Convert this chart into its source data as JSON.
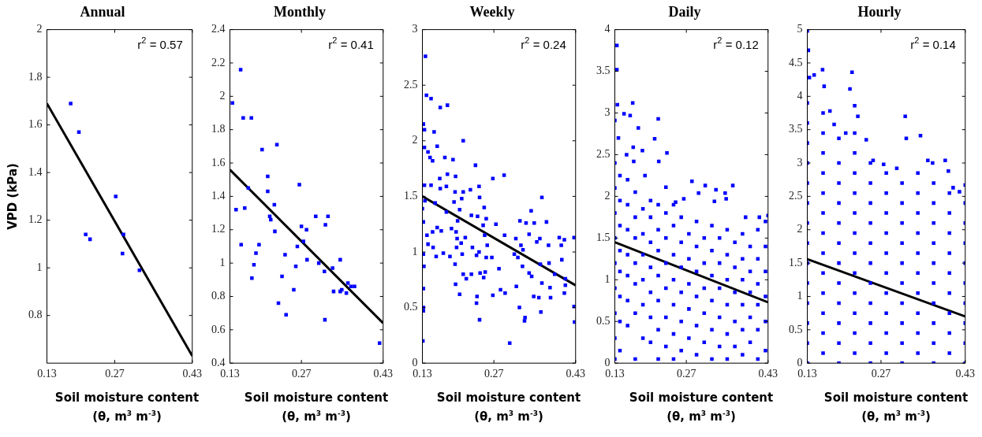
{
  "chart_data": [
    {
      "type": "scatter",
      "title": "Annual",
      "ylabel": "VPD (kPa)",
      "xlabel": "Soil moisture content (θ, m$^{3}$ m$^{-3}$)",
      "annotations": [
        "r$^{2}$ = 0.57"
      ],
      "xlim": [
        0.13,
        0.43
      ],
      "xticks": [
        0.13,
        0.27,
        0.43
      ],
      "ylim": [
        0.6,
        2
      ],
      "yticks": [
        0.8,
        1,
        1.2,
        1.4,
        1.6,
        1.8,
        2
      ],
      "series": [
        {
          "type": "scatter",
          "color": "#0000ff",
          "marker": "square",
          "x": [
            0.179,
            0.196,
            0.21,
            0.219,
            0.272,
            0.288,
            0.286,
            0.321
          ],
          "values": [
            1.69,
            1.57,
            1.14,
            1.12,
            1.3,
            1.14,
            1.06,
            0.99
          ]
        },
        {
          "type": "line",
          "color": "#000000",
          "marker": "none",
          "x": [
            0.13,
            0.43
          ],
          "values": [
            1.69,
            0.63
          ]
        }
      ]
    },
    {
      "type": "scatter",
      "title": "Monthly",
      "xlabel": "Soil moisture content (θ, m$^{3}$ m$^{-3}$)",
      "annotations": [
        "r$^{2}$ = 0.41"
      ],
      "xlim": [
        0.13,
        0.43
      ],
      "xticks": [
        0.13,
        0.27,
        0.43
      ],
      "ylim": [
        0.4,
        2.4
      ],
      "yticks": [
        0.4,
        0.6,
        0.8,
        1,
        1.2,
        1.4,
        1.6,
        1.8,
        2,
        2.2,
        2.4
      ],
      "series": [
        {
          "type": "scatter",
          "color": "#0000ff",
          "marker": "square",
          "x": [
            0.135,
            0.151,
            0.156,
            0.172,
            0.142,
            0.159,
            0.152,
            0.166,
            0.193,
            0.222,
            0.204,
            0.204,
            0.217,
            0.208,
            0.21,
            0.218,
            0.187,
            0.181,
            0.177,
            0.173,
            0.232,
            0.238,
            0.225,
            0.24,
            0.255,
            0.259,
            0.262,
            0.266,
            0.27,
            0.274,
            0.28,
            0.281,
            0.298,
            0.304,
            0.315,
            0.317,
            0.322,
            0.331,
            0.333,
            0.316,
            0.346,
            0.346,
            0.349,
            0.358,
            0.361,
            0.367,
            0.374,
            0.423
          ],
          "values": [
            1.96,
            2.16,
            1.87,
            1.87,
            1.32,
            1.33,
            1.11,
            1.45,
            1.68,
            1.71,
            1.52,
            1.43,
            1.35,
            1.28,
            1.26,
            1.19,
            1.11,
            1.06,
            0.99,
            0.91,
            0.92,
            1.05,
            0.76,
            0.69,
            0.84,
            0.98,
            1.1,
            1.47,
            1.22,
            1.13,
            1.2,
            1.02,
            1.28,
            1,
            0.95,
            1.23,
            1.28,
            0.97,
            0.83,
            0.66,
            1.02,
            0.83,
            0.84,
            0.82,
            0.88,
            0.86,
            0.86,
            0.52
          ]
        },
        {
          "type": "line",
          "color": "#000000",
          "marker": "none",
          "x": [
            0.13,
            0.43
          ],
          "values": [
            1.56,
            0.64
          ]
        }
      ]
    },
    {
      "type": "scatter",
      "title": "Weekly",
      "xlabel": "Soil moisture content (θ, m$^{3}$ m$^{-3}$)",
      "annotations": [
        "r$^{2}$ = 0.24"
      ],
      "xlim": [
        0.13,
        0.43
      ],
      "xticks": [
        0.13,
        0.27,
        0.43
      ],
      "ylim": [
        0,
        3
      ],
      "yticks": [
        0,
        0.5,
        1,
        1.5,
        2,
        2.5,
        3
      ],
      "series": [
        {
          "type": "scatter",
          "color": "#0000ff",
          "marker": "square",
          "x": [
            0.136,
            0.138,
            0.147,
            0.165,
            0.179,
            0.132,
            0.134,
            0.153,
            0.21,
            0.134,
            0.159,
            0.141,
            0.145,
            0.15,
            0.174,
            0.19,
            0.234,
            0.179,
            0.164,
            0.195,
            0.268,
            0.29,
            0.134,
            0.147,
            0.177,
            0.241,
            0.224,
            0.165,
            0.194,
            0.21,
            0.135,
            0.155,
            0.192,
            0.207,
            0.242,
            0.364,
            0.13,
            0.177,
            0.203,
            0.251,
            0.343,
            0.132,
            0.199,
            0.226,
            0.238,
            0.255,
            0.321,
            0.333,
            0.373,
            0.349,
            0.159,
            0.187,
            0.249,
            0.274,
            0.139,
            0.15,
            0.167,
            0.196,
            0.214,
            0.252,
            0.291,
            0.313,
            0.339,
            0.36,
            0.398,
            0.408,
            0.427,
            0.141,
            0.198,
            0.206,
            0.257,
            0.323,
            0.354,
            0.377,
            0.402,
            0.132,
            0.151,
            0.157,
            0.171,
            0.197,
            0.184,
            0.208,
            0.228,
            0.236,
            0.241,
            0.255,
            0.266,
            0.31,
            0.317,
            0.327,
            0.403,
            0.133,
            0.194,
            0.28,
            0.326,
            0.361,
            0.378,
            0.21,
            0.226,
            0.243,
            0.253,
            0.339,
            0.344,
            0.389,
            0.41,
            0.216,
            0.25,
            0.195,
            0.314,
            0.364,
            0.38,
            0.41,
            0.132,
            0.203,
            0.283,
            0.292,
            0.268,
            0.237,
            0.348,
            0.358,
            0.381,
            0.408,
            0.236,
            0.32,
            0.362,
            0.427,
            0.132,
            0.132,
            0.242,
            0.331,
            0.33,
            0.428,
            0.131,
            0.301
          ],
          "values": [
            2.76,
            2.41,
            2.38,
            2.3,
            2.32,
            2.15,
            2.1,
            2.08,
            2,
            1.94,
            1.95,
            1.9,
            1.85,
            1.82,
            1.85,
            1.83,
            1.78,
            1.7,
            1.66,
            1.68,
            1.66,
            1.69,
            1.6,
            1.6,
            1.59,
            1.59,
            1.56,
            1.57,
            1.54,
            1.54,
            1.46,
            1.44,
            1.45,
            1.48,
            1.49,
            1.49,
            1.39,
            1.36,
            1.38,
            1.4,
            1.37,
            1.27,
            1.28,
            1.33,
            1.32,
            1.3,
            1.28,
            1.26,
            1.27,
            1.26,
            1.22,
            1.21,
            1.24,
            1.25,
            1.15,
            1.18,
            1.19,
            1.18,
            1.13,
            1.15,
            1.15,
            1.12,
            1.16,
            1.12,
            1.13,
            1.11,
            1.13,
            1.07,
            1.12,
            1.08,
            1.06,
            1.06,
            1.09,
            1.06,
            1.06,
            0.98,
            1.04,
            0.96,
            0.99,
            1.04,
            0.96,
            0.98,
            1.04,
            0.97,
            1,
            0.95,
            0.95,
            0.98,
            0.95,
            1.02,
            0.93,
            0.87,
            0.89,
            0.85,
            0.87,
            0.89,
            0.9,
            0.8,
            0.8,
            0.81,
            0.82,
            0.81,
            0.78,
            0.8,
            0.76,
            0.76,
            0.77,
            0.71,
            0.69,
            0.72,
            0.68,
            0.7,
            0.67,
            0.62,
            0.66,
            0.63,
            0.61,
            0.6,
            0.6,
            0.59,
            0.59,
            0.63,
            0.54,
            0.5,
            0.46,
            0.51,
            0.5,
            0.47,
            0.39,
            0.41,
            0.38,
            0.37,
            0.2,
            0.18
          ]
        },
        {
          "type": "line",
          "color": "#000000",
          "marker": "none",
          "x": [
            0.13,
            0.43
          ],
          "values": [
            1.5,
            0.7
          ]
        }
      ]
    },
    {
      "type": "scatter",
      "title": "Daily",
      "xlabel": "Soil moisture content (θ, m$^{3}$ m$^{-3}$)",
      "annotations": [
        "r$^{2}$ = 0.12"
      ],
      "xlim": [
        0.13,
        0.43
      ],
      "xticks": [
        0.13,
        0.27,
        0.43
      ],
      "ylim": [
        0,
        4
      ],
      "yticks": [
        0,
        0.5,
        1,
        1.5,
        2,
        2.5,
        3,
        3.5,
        4
      ],
      "series": [
        {
          "type": "scatter",
          "color": "#0000ff",
          "marker": "square",
          "x": [
            0.134,
            0.134,
            0.135,
            0.165,
            0.215,
            0.148,
            0.13,
            0.16,
            0.176,
            0.208,
            0.137,
            0.166,
            0.232,
            0.184,
            0.216,
            0.167,
            0.153,
            0.189,
            0.281,
            0.23,
            0.307,
            0.361,
            0.328,
            0.294,
            0.346,
            0.265,
            0.325,
            0.348,
            0.249,
            0.43,
            0.386,
            0.413,
            0.13,
            0.13,
            0.13,
            0.13,
            0.13,
            0.13,
            0.13,
            0.13,
            0.13,
            0.14,
            0.14,
            0.14,
            0.14,
            0.14,
            0.14,
            0.14,
            0.14,
            0.155,
            0.155,
            0.155,
            0.155,
            0.155,
            0.155,
            0.155,
            0.17,
            0.17,
            0.17,
            0.17,
            0.17,
            0.17,
            0.17,
            0.185,
            0.185,
            0.185,
            0.185,
            0.185,
            0.185,
            0.2,
            0.2,
            0.2,
            0.2,
            0.2,
            0.2,
            0.2,
            0.215,
            0.215,
            0.215,
            0.215,
            0.215,
            0.215,
            0.215,
            0.23,
            0.23,
            0.23,
            0.23,
            0.23,
            0.23,
            0.245,
            0.245,
            0.245,
            0.245,
            0.245,
            0.245,
            0.245,
            0.26,
            0.26,
            0.26,
            0.26,
            0.26,
            0.26,
            0.275,
            0.275,
            0.275,
            0.275,
            0.275,
            0.29,
            0.29,
            0.29,
            0.29,
            0.29,
            0.29,
            0.305,
            0.305,
            0.305,
            0.305,
            0.305,
            0.32,
            0.32,
            0.32,
            0.32,
            0.32,
            0.32,
            0.335,
            0.335,
            0.335,
            0.335,
            0.335,
            0.35,
            0.35,
            0.35,
            0.35,
            0.35,
            0.35,
            0.365,
            0.365,
            0.365,
            0.365,
            0.365,
            0.38,
            0.38,
            0.38,
            0.38,
            0.38,
            0.38,
            0.395,
            0.395,
            0.395,
            0.395,
            0.395,
            0.41,
            0.41,
            0.41,
            0.41,
            0.41,
            0.41,
            0.425,
            0.425,
            0.425,
            0.425,
            0.425,
            0.425
          ],
          "values": [
            3.81,
            3.52,
            3.1,
            3.12,
            2.93,
            2.99,
            2.91,
            2.97,
            2.82,
            2.69,
            2.7,
            2.59,
            2.52,
            2.55,
            2.42,
            2.42,
            2.5,
            2.25,
            2.18,
            2.11,
            2.13,
            2.13,
            2.08,
            2.04,
            2.04,
            1.97,
            1.94,
            1.97,
            1.93,
            1.77,
            1.75,
            1.75,
            0.05,
            0.3,
            0.6,
            0.9,
            1.2,
            1.5,
            1.8,
            2.1,
            2.4,
            0.15,
            0.5,
            0.8,
            1.1,
            1.35,
            1.65,
            1.95,
            2.25,
            0.45,
            0.75,
            1.05,
            1.3,
            1.6,
            1.9,
            2.2,
            0.05,
            0.6,
            0.95,
            1.2,
            1.5,
            1.75,
            2.05,
            0.3,
            0.7,
            1,
            1.3,
            1.55,
            1.85,
            0.25,
            0.55,
            0.85,
            1.15,
            1.45,
            1.75,
            1.95,
            0.05,
            0.4,
            0.75,
            1.05,
            1.35,
            1.6,
            1.9,
            0.2,
            0.55,
            0.9,
            1.2,
            1.5,
            1.8,
            0.05,
            0.35,
            0.7,
            1,
            1.3,
            1.65,
            1.9,
            0.15,
            0.5,
            0.85,
            1.15,
            1.45,
            1.75,
            0.3,
            0.65,
            0.95,
            1.25,
            1.55,
            0.1,
            0.45,
            0.8,
            1.1,
            1.4,
            1.7,
            0.25,
            0.6,
            0.9,
            1.2,
            1.5,
            0.05,
            0.4,
            0.75,
            1.05,
            1.35,
            1.65,
            0.2,
            0.55,
            0.9,
            1.2,
            1.5,
            0.05,
            0.35,
            0.7,
            1,
            1.3,
            1.6,
            0.2,
            0.5,
            0.85,
            1.15,
            1.45,
            0.1,
            0.4,
            0.7,
            1,
            1.25,
            1.55,
            0.25,
            0.55,
            0.85,
            1.1,
            1.4,
            0.05,
            0.4,
            0.7,
            0.95,
            1.25,
            1.6,
            0.15,
            0.5,
            0.8,
            1.1,
            1.4,
            1.7
          ]
        },
        {
          "type": "line",
          "color": "#000000",
          "marker": "none",
          "x": [
            0.13,
            0.43
          ],
          "values": [
            1.45,
            0.73
          ]
        }
      ]
    },
    {
      "type": "scatter",
      "title": "Hourly",
      "xlabel": "Soil moisture content (θ, m$^{3}$ m$^{-3}$)",
      "annotations": [
        "r$^{2}$ = 0.14"
      ],
      "xlim": [
        0.13,
        0.43
      ],
      "xticks": [
        0.13,
        0.27,
        0.43
      ],
      "ylim": [
        0,
        5
      ],
      "yticks": [
        0,
        0.5,
        1,
        1.5,
        2,
        2.5,
        3,
        3.5,
        4,
        4.5,
        5
      ],
      "series": [
        {
          "type": "scatter",
          "color": "#0000ff",
          "marker": "square",
          "x": [
            0.13,
            0.132,
            0.134,
            0.143,
            0.159,
            0.162,
            0.173,
            0.181,
            0.19,
            0.203,
            0.215,
            0.211,
            0.22,
            0.226,
            0.242,
            0.255,
            0.275,
            0.3,
            0.316,
            0.318,
            0.345,
            0.359,
            0.368,
            0.392,
            0.398,
            0.407,
            0.419,
            0.43,
            0.13,
            0.13,
            0.13,
            0.13,
            0.13,
            0.13,
            0.13,
            0.13,
            0.13,
            0.13,
            0.13,
            0.13,
            0.13,
            0.13,
            0.16,
            0.16,
            0.16,
            0.16,
            0.16,
            0.16,
            0.16,
            0.16,
            0.16,
            0.16,
            0.16,
            0.16,
            0.16,
            0.19,
            0.19,
            0.19,
            0.19,
            0.19,
            0.19,
            0.19,
            0.19,
            0.19,
            0.19,
            0.19,
            0.22,
            0.22,
            0.22,
            0.22,
            0.22,
            0.22,
            0.22,
            0.22,
            0.22,
            0.22,
            0.22,
            0.22,
            0.25,
            0.25,
            0.25,
            0.25,
            0.25,
            0.25,
            0.25,
            0.25,
            0.25,
            0.25,
            0.25,
            0.28,
            0.28,
            0.28,
            0.28,
            0.28,
            0.28,
            0.28,
            0.28,
            0.28,
            0.28,
            0.31,
            0.31,
            0.31,
            0.31,
            0.31,
            0.31,
            0.31,
            0.31,
            0.31,
            0.31,
            0.34,
            0.34,
            0.34,
            0.34,
            0.34,
            0.34,
            0.34,
            0.34,
            0.34,
            0.34,
            0.37,
            0.37,
            0.37,
            0.37,
            0.37,
            0.37,
            0.37,
            0.37,
            0.37,
            0.37,
            0.4,
            0.4,
            0.4,
            0.4,
            0.4,
            0.4,
            0.4,
            0.4,
            0.4,
            0.43,
            0.43,
            0.43,
            0.43,
            0.43,
            0.43,
            0.43,
            0.43,
            0.43
          ],
          "values": [
            4.98,
            4.69,
            4.28,
            4.32,
            4.4,
            4.15,
            3.78,
            3.58,
            3.37,
            3.45,
            4.36,
            4.11,
            3.86,
            3.7,
            3.35,
            3.04,
            2.98,
            2.92,
            3.7,
            3.37,
            3.41,
            3.04,
            3,
            3.04,
            2.88,
            2.63,
            2.57,
            2.67,
            0,
            0.3,
            0.6,
            0.9,
            1.2,
            1.5,
            1.8,
            2.1,
            2.4,
            2.7,
            3,
            3.3,
            3.6,
            3.9,
            0.15,
            0.45,
            0.75,
            1.05,
            1.35,
            1.65,
            1.95,
            2.25,
            2.55,
            2.85,
            3.15,
            3.45,
            3.75,
            0,
            0.3,
            0.6,
            0.9,
            1.2,
            1.5,
            1.8,
            2.1,
            2.4,
            2.7,
            3,
            0.15,
            0.45,
            0.75,
            1.05,
            1.35,
            1.65,
            1.95,
            2.25,
            2.55,
            2.85,
            3.15,
            3.45,
            0,
            0.3,
            0.6,
            0.9,
            1.2,
            1.5,
            1.8,
            2.1,
            2.4,
            2.7,
            3,
            0.15,
            0.45,
            0.75,
            1.05,
            1.35,
            1.65,
            1.95,
            2.25,
            2.55,
            2.85,
            0,
            0.3,
            0.6,
            0.9,
            1.2,
            1.5,
            1.8,
            2.1,
            2.4,
            2.7,
            0.15,
            0.45,
            0.75,
            1.05,
            1.35,
            1.65,
            1.95,
            2.25,
            2.55,
            2.85,
            0,
            0.3,
            0.6,
            0.9,
            1.2,
            1.5,
            1.8,
            2.1,
            2.4,
            2.7,
            0.15,
            0.45,
            0.75,
            1.05,
            1.35,
            1.65,
            1.95,
            2.25,
            2.55,
            0,
            0.3,
            0.6,
            0.9,
            1.2,
            1.5,
            1.8,
            2.1,
            2.4
          ]
        },
        {
          "type": "line",
          "color": "#000000",
          "marker": "none",
          "x": [
            0.13,
            0.43
          ],
          "values": [
            1.56,
            0.7
          ]
        }
      ]
    }
  ]
}
